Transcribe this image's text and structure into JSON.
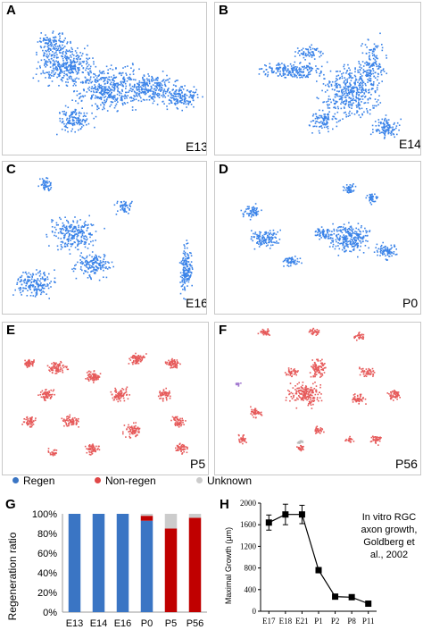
{
  "panels": [
    {
      "letter": "A",
      "stage": "E13",
      "color": "#3a83e8"
    },
    {
      "letter": "B",
      "stage": "E14",
      "color": "#3a83e8"
    },
    {
      "letter": "C",
      "stage": "E16",
      "color": "#3a83e8"
    },
    {
      "letter": "D",
      "stage": "P0",
      "color": "#3a83e8"
    },
    {
      "letter": "E",
      "stage": "P5",
      "color": "#e65a5a"
    },
    {
      "letter": "F",
      "stage": "P56",
      "color": "#e65a5a"
    }
  ],
  "legend": [
    {
      "label": "Regen",
      "color": "#3a75c4"
    },
    {
      "label": "Non-regen",
      "color": "#e04848"
    },
    {
      "label": "Unknown",
      "color": "#cccccc"
    }
  ],
  "chart_G": {
    "letter": "G",
    "ylabel": "Regeneration ratio",
    "yticks": [
      "0%",
      "20%",
      "40%",
      "60%",
      "80%",
      "100%"
    ]
  },
  "chart_H": {
    "letter": "H",
    "ylabel": "Maximal Growth (µm)",
    "yticks": [
      "0",
      "400",
      "800",
      "1200",
      "1600",
      "2000"
    ],
    "annotation": [
      "In vitro RGC",
      "axon growth,",
      "Goldberg et",
      "al., 2002"
    ]
  },
  "chart_data": [
    {
      "type": "bar",
      "stacked": true,
      "title": "",
      "xlabel": "",
      "ylabel": "Regeneration ratio",
      "categories": [
        "E13",
        "E14",
        "E16",
        "P0",
        "P5",
        "P56"
      ],
      "series": [
        {
          "name": "Regen",
          "color": "#3a75c4",
          "values": [
            100,
            100,
            100,
            93,
            0,
            0
          ]
        },
        {
          "name": "Non-regen",
          "color": "#c00000",
          "values": [
            0,
            0,
            0,
            5,
            85,
            96
          ]
        },
        {
          "name": "Unknown",
          "color": "#cccccc",
          "values": [
            0,
            0,
            0,
            2,
            15,
            4
          ]
        }
      ],
      "ylim": [
        0,
        100
      ],
      "grid": false,
      "legend_position": "top"
    },
    {
      "type": "line",
      "title": "",
      "xlabel": "",
      "ylabel": "Maximal Growth (µm)",
      "categories": [
        "E17",
        "E18",
        "E21",
        "P1",
        "P2",
        "P8",
        "P11"
      ],
      "series": [
        {
          "values": [
            1640,
            1790,
            1790,
            760,
            270,
            260,
            140
          ],
          "error": [
            140,
            190,
            170,
            50,
            40,
            30,
            20
          ]
        }
      ],
      "ylim": [
        0,
        2000
      ],
      "grid": false
    }
  ]
}
